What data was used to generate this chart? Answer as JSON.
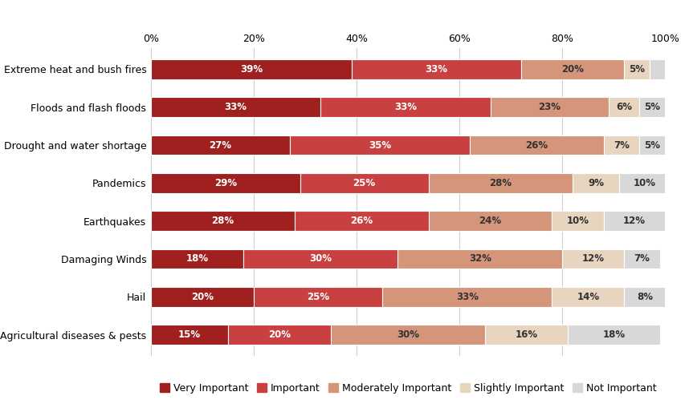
{
  "categories": [
    "Extreme heat and bush fires",
    "Floods and flash floods",
    "Drought and water shortage",
    "Pandemics",
    "Earthquakes",
    "Damaging Winds",
    "Hail",
    "Agricultural diseases & pests"
  ],
  "series": {
    "Very Important": [
      39,
      33,
      27,
      29,
      28,
      18,
      20,
      15
    ],
    "Important": [
      33,
      33,
      35,
      25,
      26,
      30,
      25,
      20
    ],
    "Moderately Important": [
      20,
      23,
      26,
      28,
      24,
      32,
      33,
      30
    ],
    "Slightly Important": [
      5,
      6,
      7,
      9,
      10,
      12,
      14,
      16
    ],
    "Not Important": [
      4,
      5,
      5,
      10,
      12,
      7,
      8,
      18
    ]
  },
  "colors": {
    "Very Important": "#a02020",
    "Important": "#c94040",
    "Moderately Important": "#d4957a",
    "Slightly Important": "#e8d5c0",
    "Not Important": "#d8d8d8"
  },
  "legend_order": [
    "Very Important",
    "Important",
    "Moderately Important",
    "Slightly Important",
    "Not Important"
  ],
  "xlim": [
    0,
    100
  ],
  "xticks": [
    0,
    20,
    40,
    60,
    80,
    100
  ],
  "xticklabels": [
    "0%",
    "20%",
    "40%",
    "60%",
    "80%",
    "100%"
  ],
  "background_color": "#ffffff",
  "bar_height": 0.52,
  "label_fontsize": 8.5,
  "tick_fontsize": 9,
  "legend_fontsize": 9
}
